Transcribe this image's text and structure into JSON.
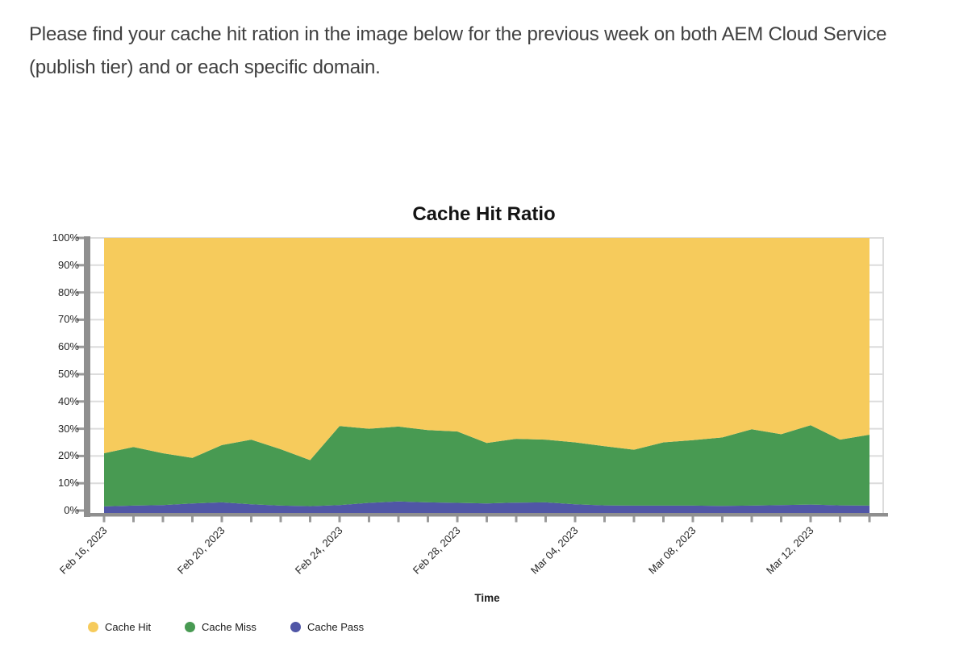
{
  "intro": {
    "text": "Please find your cache hit ration in the image below for the previous week on both AEM Cloud Service (publish tier) and or each specific domain."
  },
  "chart": {
    "title": "Cache Hit Ratio",
    "y_axis": {
      "ticks": [
        "100%",
        "90%",
        "80%",
        "70%",
        "60%",
        "50%",
        "40%",
        "30%",
        "20%",
        "10%",
        "0%"
      ]
    },
    "x_axis": {
      "label": "Time",
      "tick_labels": [
        "Feb 16, 2023",
        "Feb 20, 2023",
        "Feb 24, 2023",
        "Feb 28, 2023",
        "Mar 04, 2023",
        "Mar 08, 2023",
        "Mar 12, 2023"
      ]
    },
    "legend": [
      {
        "label": "Cache Hit",
        "color": "#F6CB5C"
      },
      {
        "label": "Cache Miss",
        "color": "#489A52"
      },
      {
        "label": "Cache Pass",
        "color": "#5056A6"
      }
    ],
    "colors": {
      "axis": "#8f8f8f",
      "tick": "#9a9a9a",
      "grid": "#dcdcdc"
    }
  },
  "chart_data": {
    "type": "area",
    "stacked": true,
    "title": "Cache Hit Ratio",
    "xlabel": "Time",
    "ylabel": "",
    "ylim": [
      0,
      100
    ],
    "grid": true,
    "legend_position": "bottom",
    "x": [
      "Feb 16, 2023",
      "Feb 17, 2023",
      "Feb 18, 2023",
      "Feb 19, 2023",
      "Feb 20, 2023",
      "Feb 21, 2023",
      "Feb 22, 2023",
      "Feb 23, 2023",
      "Feb 24, 2023",
      "Feb 25, 2023",
      "Feb 26, 2023",
      "Feb 27, 2023",
      "Feb 28, 2023",
      "Mar 01, 2023",
      "Mar 02, 2023",
      "Mar 03, 2023",
      "Mar 04, 2023",
      "Mar 05, 2023",
      "Mar 06, 2023",
      "Mar 07, 2023",
      "Mar 08, 2023",
      "Mar 09, 2023",
      "Mar 10, 2023",
      "Mar 11, 2023",
      "Mar 12, 2023",
      "Mar 13, 2023",
      "Mar 14, 2023"
    ],
    "series": [
      {
        "name": "Cache Hit",
        "color": "#F6CB5C",
        "values": [
          79.0,
          76.7,
          79.0,
          80.7,
          76.0,
          74.0,
          77.5,
          81.5,
          69.0,
          70.0,
          69.2,
          70.5,
          71.0,
          75.2,
          73.7,
          74.0,
          75.0,
          76.4,
          77.7,
          75.0,
          74.2,
          73.2,
          70.2,
          72.0,
          68.7,
          74.0,
          72.2
        ]
      },
      {
        "name": "Cache Miss",
        "color": "#489A52",
        "values": [
          19.5,
          21.5,
          19.0,
          16.7,
          21.0,
          23.7,
          20.7,
          16.9,
          29.0,
          27.2,
          27.5,
          26.5,
          26.2,
          22.2,
          23.4,
          23.0,
          22.7,
          21.7,
          20.5,
          23.2,
          24.0,
          25.1,
          28.0,
          26.0,
          29.1,
          24.1,
          26.0
        ]
      },
      {
        "name": "Cache Pass",
        "color": "#5056A6",
        "values": [
          1.5,
          1.8,
          2.0,
          2.6,
          3.0,
          2.3,
          1.8,
          1.6,
          2.0,
          2.8,
          3.3,
          3.0,
          2.8,
          2.6,
          2.9,
          3.0,
          2.3,
          1.9,
          1.8,
          1.8,
          1.8,
          1.7,
          1.8,
          2.0,
          2.2,
          1.9,
          1.8
        ]
      }
    ]
  }
}
